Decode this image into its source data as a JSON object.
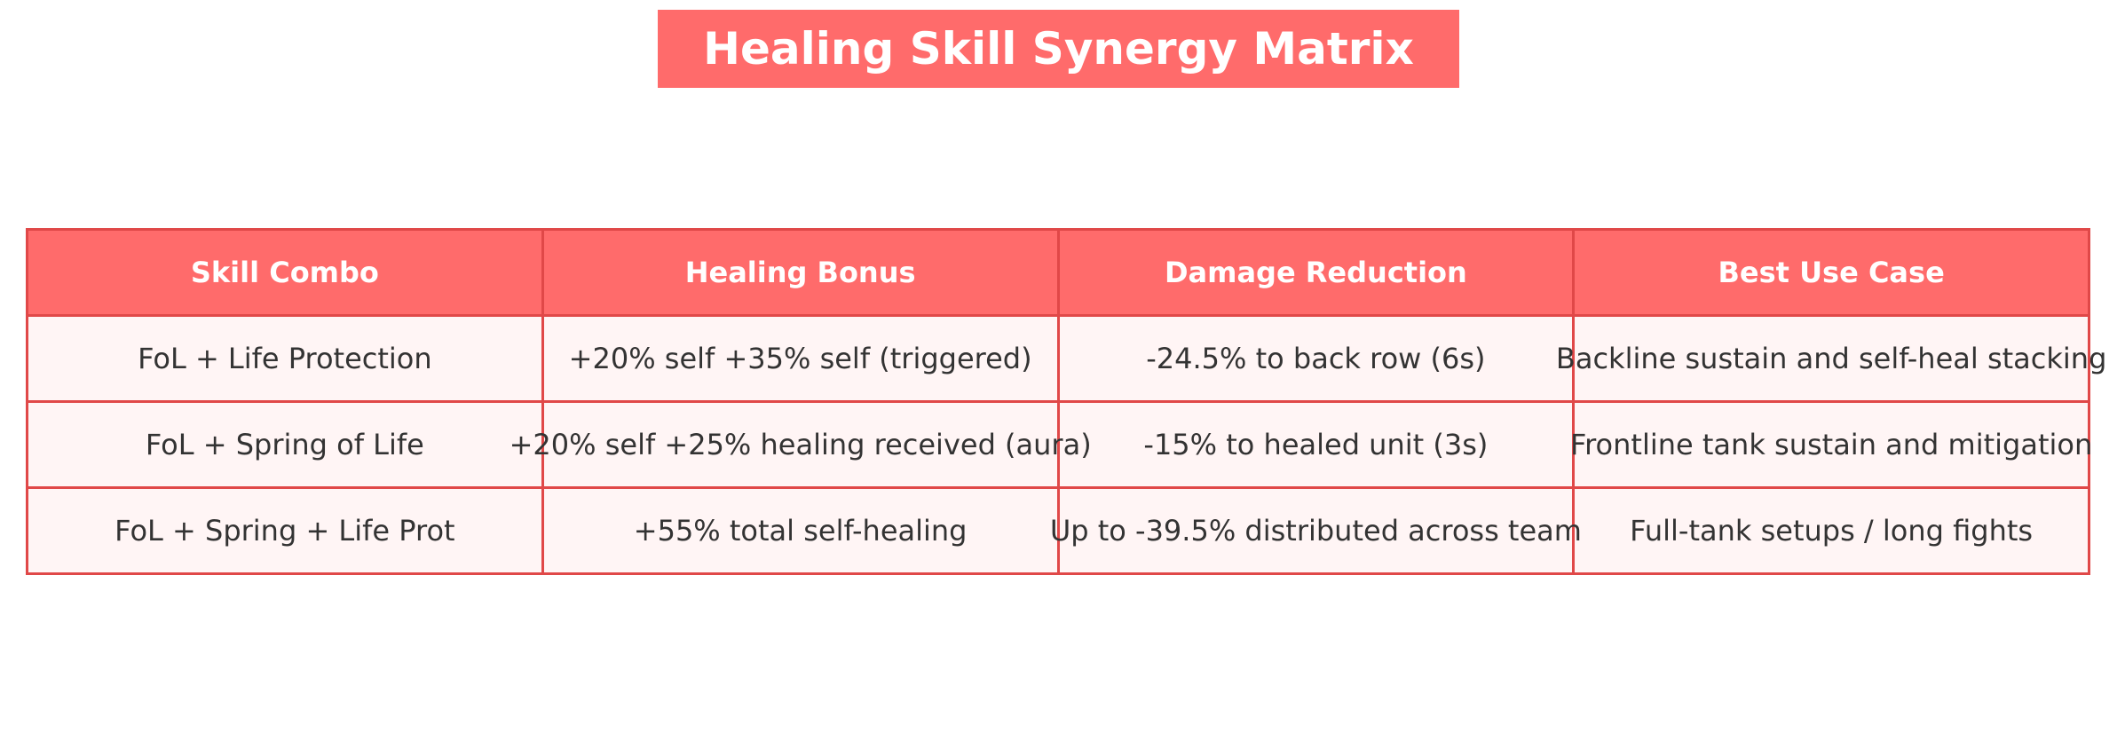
{
  "chart_data": {
    "type": "table",
    "title": "Healing Skill Synergy Matrix",
    "columns": [
      "Skill Combo",
      "Healing Bonus",
      "Damage Reduction",
      "Best Use Case"
    ],
    "rows": [
      [
        "FoL + Life Protection",
        "+20% self +35% self (triggered)",
        "-24.5% to back row (6s)",
        "Backline sustain and self-heal stacking"
      ],
      [
        "FoL + Spring of Life",
        "+20% self +25% healing received (aura)",
        "-15% to healed unit (3s)",
        "Frontline tank sustain and mitigation"
      ],
      [
        "FoL + Spring + Life Prot",
        "+55% total self-healing",
        "Up to -39.5% distributed across team",
        "Full-tank setups / long fights"
      ]
    ]
  },
  "colors": {
    "header_bg": "#ff6b6b",
    "border": "#e04848",
    "cell_bg": "#fff5f5",
    "title_bg": "#ff6b6b",
    "text": "#333333"
  }
}
